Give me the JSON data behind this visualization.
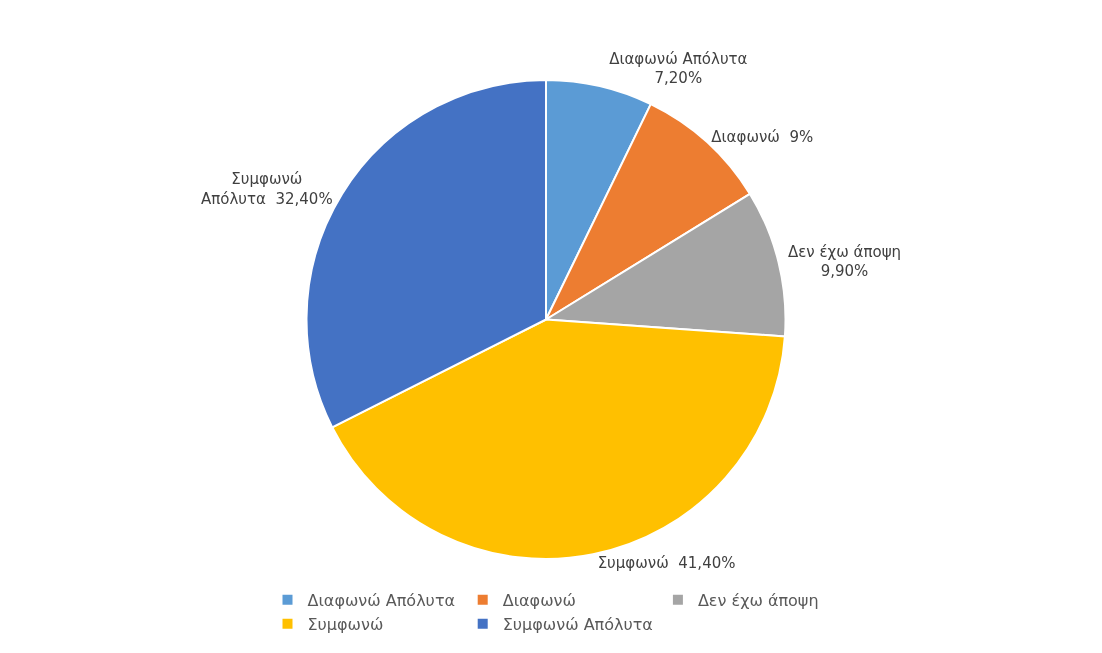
{
  "chart_data": {
    "type": "pie",
    "categories": [
      "Διαφωνώ Απόλυτα",
      "Διαφωνώ",
      "Δεν έχω άποψη",
      "Συμφωνώ",
      "Συμφωνώ Απόλυτα"
    ],
    "values": [
      7.2,
      9,
      9.9,
      41.4,
      32.4
    ],
    "colors": [
      "#5b9bd5",
      "#ed7d31",
      "#a5a5a5",
      "#ffc000",
      "#4472c4"
    ],
    "value_labels": [
      "Διαφωνώ Απόλυτα\n7,20%",
      "Διαφωνώ  9%",
      "Δεν έχω άποψη\n9,90%",
      "Συμφωνώ  41,40%",
      "Συμφωνώ\nΑπόλυτα  32,40%"
    ],
    "legend": "bottom"
  }
}
